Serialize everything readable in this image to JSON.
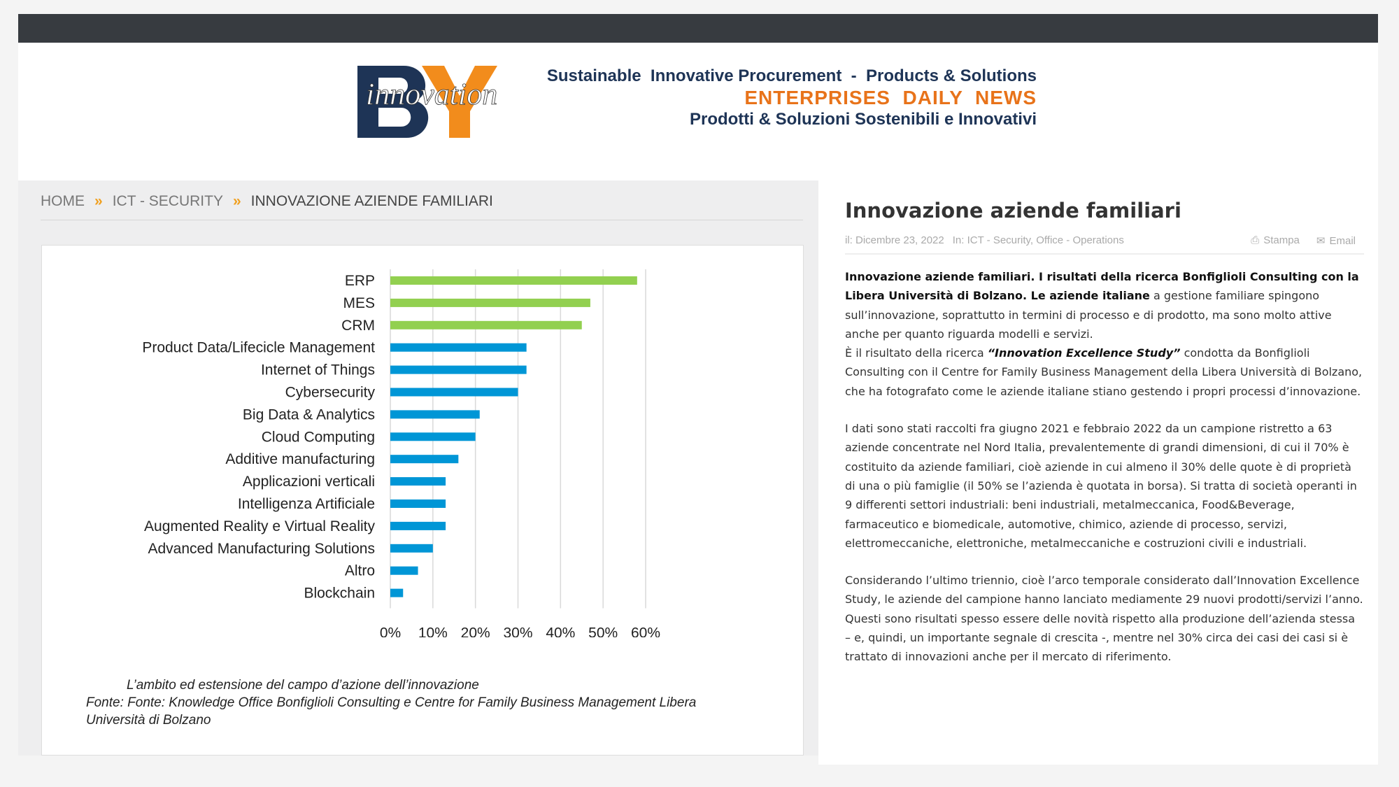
{
  "header": {
    "logo_text": "BY innovation",
    "tagline1": "Sustainable  Innovative Procurement  -  Products & Solutions",
    "tagline2": "ENTERPRISES  DAILY  NEWS",
    "tagline3": "Prodotti & Soluzioni Sostenibili e Innovativi",
    "colors": {
      "navy": "#1e3456",
      "orange": "#e8731a"
    }
  },
  "breadcrumb": {
    "items": [
      "HOME",
      "ICT - SECURITY"
    ],
    "current": "INNOVAZIONE AZIENDE FAMILIARI"
  },
  "chart_data": {
    "type": "bar",
    "orientation": "horizontal",
    "categories": [
      "ERP",
      "MES",
      "CRM",
      "Product Data/Lifecicle Management",
      "Internet of Things",
      "Cybersecurity",
      "Big Data & Analytics",
      "Cloud Computing",
      "Additive manufacturing",
      "Applicazioni verticali",
      "Intelligenza Artificiale",
      "Augmented Reality e Virtual Reality",
      "Advanced Manufacturing Solutions",
      "Altro",
      "Blockchain"
    ],
    "values": [
      58,
      47,
      45,
      32,
      32,
      30,
      21,
      20,
      16,
      13,
      13,
      13,
      10,
      6.5,
      3
    ],
    "bar_colors": [
      "#92d050",
      "#92d050",
      "#92d050",
      "#0096d6",
      "#0096d6",
      "#0096d6",
      "#0096d6",
      "#0096d6",
      "#0096d6",
      "#0096d6",
      "#0096d6",
      "#0096d6",
      "#0096d6",
      "#0096d6",
      "#0096d6"
    ],
    "xlim": [
      0,
      60
    ],
    "xticks": [
      "0%",
      "10%",
      "20%",
      "30%",
      "40%",
      "50%",
      "60%"
    ],
    "grid": true
  },
  "caption": {
    "line1": "L’ambito ed estensione del campo d’azione dell’innovazione",
    "line2": "Fonte: Fonte: Knowledge Office Bonfiglioli Consulting e Centre for Family Business Management Libera",
    "line3": "Università di Bolzano"
  },
  "article": {
    "title": "Innovazione aziende familiari",
    "date": "il: Dicembre 23, 2022",
    "categories": "In: ICT - Security, Office - Operations",
    "print_label": "Stampa",
    "email_label": "Email",
    "p1_bold": "Innovazione aziende familiari. I risultati della ricerca Bonfiglioli Consulting con la Libera Università di Bolzano. Le aziende italiane",
    "p1_rest": " a gestione familiare spingono sull’innovazione, soprattutto in termini di processo e di prodotto, ma sono molto attive anche per quanto riguarda modelli e servizi.",
    "p1b_a": "È il risultato della ricerca ",
    "p1b_em": "“Innovation Excellence Study”",
    "p1b_b": " condotta da Bonfiglioli Consulting con il Centre for Family Business Management della Libera Università di Bolzano, che ha fotografato come le aziende italiane stiano gestendo i propri processi d’innovazione.",
    "p2": "I dati sono stati raccolti fra giugno 2021 e febbraio 2022 da un campione ristretto a 63 aziende concentrate nel Nord Italia, prevalentemente di grandi dimensioni, di cui il 70% è costituito da aziende familiari, cioè aziende in cui almeno il 30% delle quote è di proprietà di una o più famiglie (il 50% se l’azienda è quotata in borsa). Si tratta di società operanti in 9 differenti settori industriali: beni industriali, metalmeccanica, Food&Beverage, farmaceutico e biomedicale, automotive, chimico, aziende di processo, servizi, elettromeccaniche, elettroniche, metalmeccaniche e costruzioni civili e industriali.",
    "p3": "Considerando l’ultimo triennio, cioè l’arco temporale considerato dall’Innovation Excellence Study, le aziende del campione hanno lanciato mediamente 29 nuovi prodotti/servizi l’anno. Questi sono risultati spesso essere delle novità rispetto alla produzione dell’azienda stessa – e, quindi, un importante segnale di crescita -, mentre nel 30% circa dei casi dei casi si è trattato di innovazioni anche per il mercato di riferimento."
  }
}
